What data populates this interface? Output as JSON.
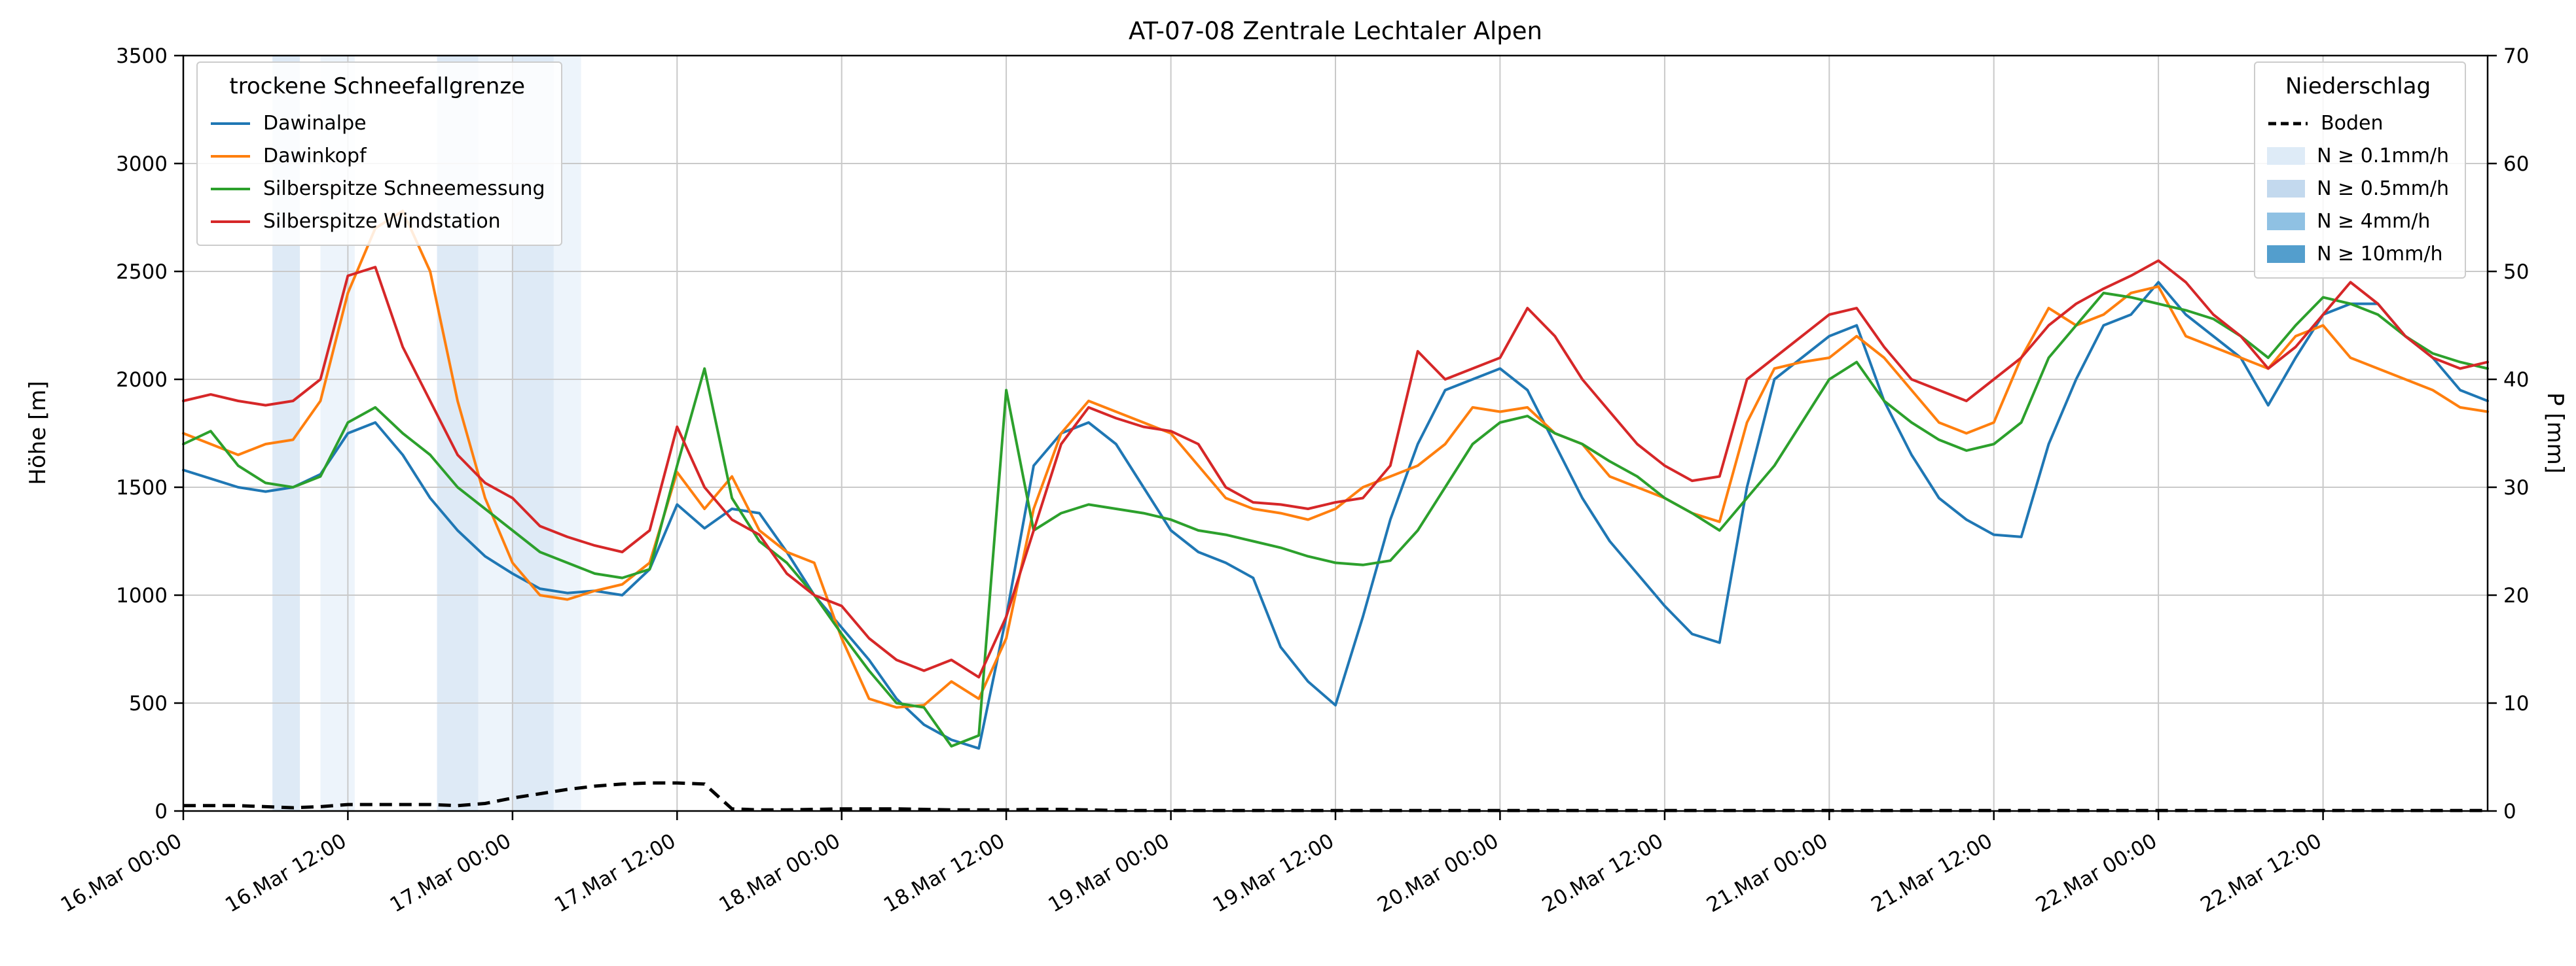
{
  "chart_data": {
    "type": "line",
    "title": "AT-07-08 Zentrale Lechtaler Alpen",
    "ylabel_left": "Höhe [m]",
    "ylabel_right": "P [mm]",
    "grid": true,
    "x_range_hours": [
      0,
      168
    ],
    "x_step_hours": 2,
    "x_ticks": [
      {
        "hour": 0,
        "label": "16.Mar 00:00"
      },
      {
        "hour": 12,
        "label": "16.Mar 12:00"
      },
      {
        "hour": 24,
        "label": "17.Mar 00:00"
      },
      {
        "hour": 36,
        "label": "17.Mar 12:00"
      },
      {
        "hour": 48,
        "label": "18.Mar 00:00"
      },
      {
        "hour": 60,
        "label": "18.Mar 12:00"
      },
      {
        "hour": 72,
        "label": "19.Mar 00:00"
      },
      {
        "hour": 84,
        "label": "19.Mar 12:00"
      },
      {
        "hour": 96,
        "label": "20.Mar 00:00"
      },
      {
        "hour": 108,
        "label": "20.Mar 12:00"
      },
      {
        "hour": 120,
        "label": "21.Mar 00:00"
      },
      {
        "hour": 132,
        "label": "21.Mar 12:00"
      },
      {
        "hour": 144,
        "label": "22.Mar 00:00"
      },
      {
        "hour": 156,
        "label": "22.Mar 12:00"
      }
    ],
    "ylim_left": [
      0,
      3500
    ],
    "y_ticks_left": [
      0,
      500,
      1000,
      1500,
      2000,
      2500,
      3000,
      3500
    ],
    "ylim_right": [
      0,
      70
    ],
    "y_ticks_right": [
      0,
      10,
      20,
      30,
      40,
      50,
      60,
      70
    ],
    "legend_left_title": "trockene Schneefallgrenze",
    "legend_right_title": "Niederschlag",
    "series": [
      {
        "id": "dawinalpe",
        "name": "Dawinalpe",
        "color": "#1f77b4",
        "values": [
          1580,
          1540,
          1500,
          1480,
          1500,
          1560,
          1750,
          1800,
          1650,
          1450,
          1300,
          1180,
          1100,
          1030,
          1010,
          1020,
          1000,
          1120,
          1420,
          1310,
          1400,
          1380,
          1200,
          1000,
          850,
          700,
          520,
          400,
          330,
          290,
          900,
          1600,
          1750,
          1800,
          1700,
          1500,
          1300,
          1200,
          1150,
          1080,
          760,
          600,
          490,
          900,
          1350,
          1700,
          1950,
          2000,
          2050,
          1950,
          1700,
          1450,
          1250,
          1100,
          950,
          820,
          780,
          1500,
          2000,
          2100,
          2200,
          2250,
          1900,
          1650,
          1450,
          1350,
          1280,
          1270,
          1700,
          2000,
          2250,
          2300,
          2450,
          2300,
          2200,
          2100,
          1880,
          2100,
          2300,
          2350,
          2350,
          2200,
          2100,
          1950,
          1900
        ]
      },
      {
        "id": "dawinkopf",
        "name": "Dawinkopf",
        "color": "#ff7f0e",
        "values": [
          1750,
          1700,
          1650,
          1700,
          1720,
          1900,
          2400,
          2700,
          2780,
          2500,
          1900,
          1450,
          1150,
          1000,
          980,
          1020,
          1050,
          1150,
          1570,
          1400,
          1550,
          1300,
          1200,
          1150,
          800,
          520,
          480,
          490,
          600,
          520,
          800,
          1400,
          1750,
          1900,
          1850,
          1800,
          1750,
          1600,
          1450,
          1400,
          1380,
          1350,
          1400,
          1500,
          1550,
          1600,
          1700,
          1870,
          1850,
          1870,
          1750,
          1700,
          1550,
          1500,
          1450,
          1380,
          1340,
          1800,
          2050,
          2080,
          2100,
          2200,
          2100,
          1950,
          1800,
          1750,
          1800,
          2100,
          2330,
          2250,
          2300,
          2400,
          2430,
          2200,
          2150,
          2100,
          2050,
          2200,
          2250,
          2100,
          2050,
          2000,
          1950,
          1870,
          1850
        ]
      },
      {
        "id": "silberspitze-schneemessung",
        "name": "Silberspitze Schneemessung",
        "color": "#2ca02c",
        "values": [
          1700,
          1760,
          1600,
          1520,
          1500,
          1550,
          1800,
          1870,
          1750,
          1650,
          1500,
          1400,
          1300,
          1200,
          1150,
          1100,
          1080,
          1120,
          1600,
          2050,
          1450,
          1250,
          1150,
          1000,
          820,
          650,
          500,
          480,
          300,
          350,
          1950,
          1300,
          1380,
          1420,
          1400,
          1380,
          1350,
          1300,
          1280,
          1250,
          1220,
          1180,
          1150,
          1140,
          1160,
          1300,
          1500,
          1700,
          1800,
          1830,
          1750,
          1700,
          1620,
          1550,
          1450,
          1380,
          1300,
          1450,
          1600,
          1800,
          2000,
          2080,
          1900,
          1800,
          1720,
          1670,
          1700,
          1800,
          2100,
          2250,
          2400,
          2380,
          2350,
          2320,
          2280,
          2200,
          2100,
          2250,
          2380,
          2350,
          2300,
          2200,
          2120,
          2080,
          2050
        ]
      },
      {
        "id": "silberspitze-windstation",
        "name": "Silberspitze Windstation",
        "color": "#d62728",
        "values": [
          1900,
          1930,
          1900,
          1880,
          1900,
          2000,
          2480,
          2520,
          2150,
          1900,
          1650,
          1520,
          1450,
          1320,
          1270,
          1230,
          1200,
          1300,
          1780,
          1500,
          1350,
          1280,
          1100,
          1000,
          950,
          800,
          700,
          650,
          700,
          620,
          900,
          1300,
          1700,
          1870,
          1820,
          1780,
          1760,
          1700,
          1500,
          1430,
          1420,
          1400,
          1430,
          1450,
          1600,
          2130,
          2000,
          2050,
          2100,
          2330,
          2200,
          2000,
          1850,
          1700,
          1600,
          1530,
          1550,
          2000,
          2100,
          2200,
          2300,
          2330,
          2150,
          2000,
          1950,
          1900,
          2000,
          2100,
          2250,
          2350,
          2420,
          2480,
          2550,
          2450,
          2300,
          2200,
          2050,
          2150,
          2300,
          2450,
          2350,
          2200,
          2100,
          2050,
          2080
        ]
      }
    ],
    "boden": {
      "name": "Boden",
      "color": "#000000",
      "axis": "right",
      "values": [
        0.5,
        0.5,
        0.5,
        0.4,
        0.3,
        0.4,
        0.6,
        0.6,
        0.6,
        0.6,
        0.5,
        0.7,
        1.2,
        1.6,
        2.0,
        2.3,
        2.5,
        2.6,
        2.6,
        2.5,
        0.2,
        0.1,
        0.1,
        0.15,
        0.2,
        0.2,
        0.2,
        0.15,
        0.1,
        0.1,
        0.1,
        0.15,
        0.15,
        0.1,
        0.05,
        0.05,
        0.05,
        0.05,
        0.05,
        0.05,
        0.05,
        0.05,
        0.05,
        0.05,
        0.05,
        0.05,
        0.05,
        0.05,
        0.05,
        0.05,
        0.05,
        0.05,
        0.05,
        0.05,
        0.05,
        0.05,
        0.05,
        0.05,
        0.05,
        0.05,
        0.05,
        0.05,
        0.05,
        0.05,
        0.05,
        0.05,
        0.05,
        0.05,
        0.05,
        0.05,
        0.05,
        0.05,
        0.05,
        0.05,
        0.05,
        0.05,
        0.05,
        0.05,
        0.05,
        0.05,
        0.05,
        0.05,
        0.05,
        0.05,
        0.05
      ]
    },
    "precip_levels": [
      {
        "label": "N ≥ 0.1mm/h",
        "color": "#deebf7"
      },
      {
        "label": "N ≥ 0.5mm/h",
        "color": "#c3d9ee"
      },
      {
        "label": "N ≥ 4mm/h",
        "color": "#8fc1e3"
      },
      {
        "label": "N ≥ 10mm/h",
        "color": "#539ecd"
      }
    ],
    "precip_bands": [
      {
        "from": 6.5,
        "to": 8.5,
        "level": 1
      },
      {
        "from": 10,
        "to": 12.5,
        "level": 0
      },
      {
        "from": 18.5,
        "to": 21.5,
        "level": 1
      },
      {
        "from": 21.5,
        "to": 24,
        "level": 0
      },
      {
        "from": 24,
        "to": 27,
        "level": 1
      },
      {
        "from": 27,
        "to": 29,
        "level": 0
      }
    ]
  }
}
